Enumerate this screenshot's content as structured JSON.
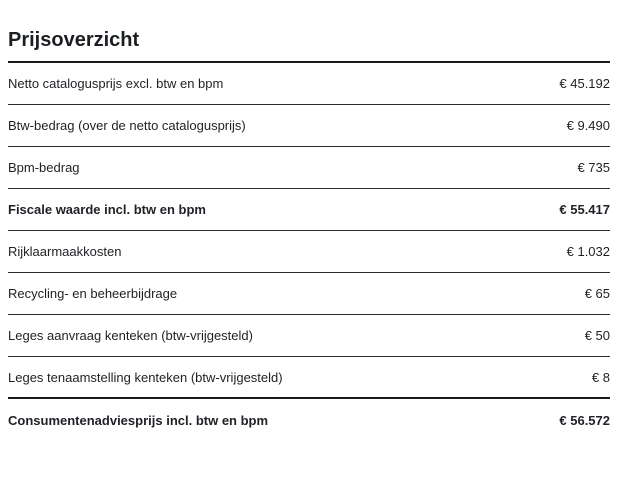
{
  "page": {
    "title": "Prijsoverzicht"
  },
  "colors": {
    "background": "#ffffff",
    "text": "#1e2125",
    "divider_thin": "#292c30",
    "divider_thick": "#17191d"
  },
  "price_table": {
    "currency_symbol": "€",
    "rows": [
      {
        "label": "Netto catalogusprijs excl. btw en bpm",
        "value": "€ 45.192",
        "bold": false
      },
      {
        "label": "Btw-bedrag (over de netto catalogusprijs)",
        "value": "€ 9.490",
        "bold": false
      },
      {
        "label": "Bpm-bedrag",
        "value": "€ 735",
        "bold": false
      },
      {
        "label": "Fiscale waarde incl. btw en bpm",
        "value": "€ 55.417",
        "bold": true
      },
      {
        "label": "Rijklaarmaakkosten",
        "value": "€ 1.032",
        "bold": false
      },
      {
        "label": "Recycling- en beheerbijdrage",
        "value": "€ 65",
        "bold": false
      },
      {
        "label": "Leges aanvraag kenteken (btw-vrijgesteld)",
        "value": "€ 50",
        "bold": false
      },
      {
        "label": "Leges tenaamstelling kenteken (btw-vrijgesteld)",
        "value": "€ 8",
        "bold": false
      },
      {
        "label": "Consumentenadviesprijs incl. btw en bpm",
        "value": "€ 56.572",
        "bold": true
      }
    ]
  }
}
